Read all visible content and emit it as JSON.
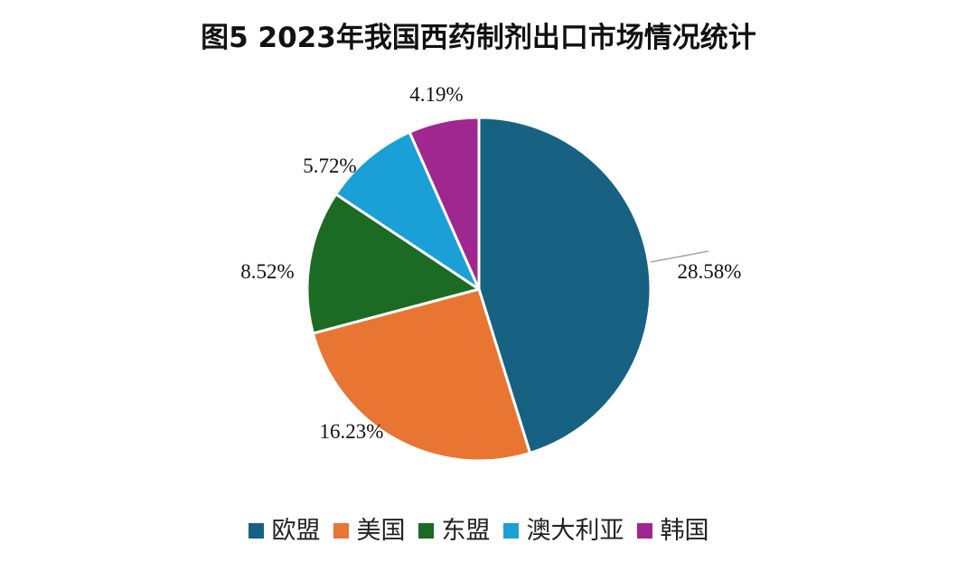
{
  "chart_data": {
    "type": "pie",
    "title": "图5  2023年我国西药制剂出口市场情况统计",
    "categories": [
      "欧盟",
      "美国",
      "东盟",
      "澳大利亚",
      "韩国"
    ],
    "values": [
      28.58,
      16.23,
      8.52,
      5.72,
      4.19
    ],
    "data_labels": [
      "28.58%",
      "16.23%",
      "8.52%",
      "5.72%",
      "4.19%"
    ],
    "colors": [
      "#176183",
      "#E97532",
      "#1B6B24",
      "#1A9FD6",
      "#A0278F"
    ],
    "legend_position": "bottom"
  }
}
